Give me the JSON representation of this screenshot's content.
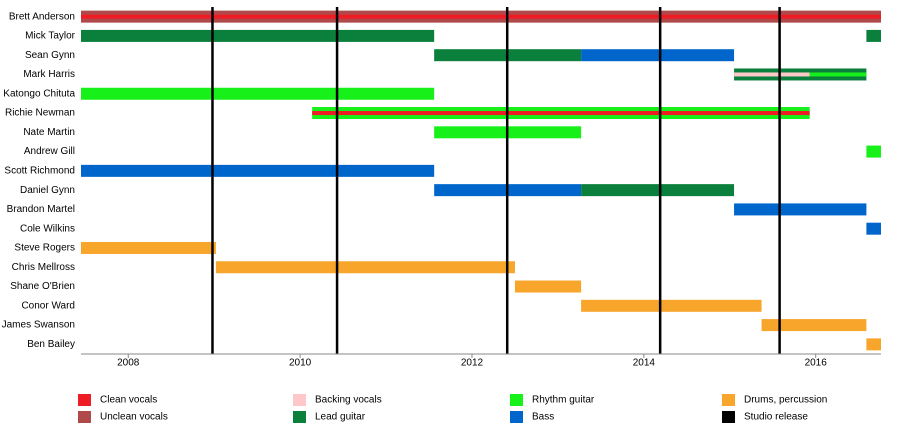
{
  "chart_data": {
    "type": "timeline",
    "xlim": [
      2007.45,
      2016.76
    ],
    "xticks": [
      2008,
      2010,
      2012,
      2014,
      2016
    ],
    "roles": [
      {
        "name": "Clean vocals",
        "color": "#ee1c24"
      },
      {
        "name": "Unclean vocals",
        "color": "#b04a4a"
      },
      {
        "name": "Backing vocals",
        "color": "#ffc8c8"
      },
      {
        "name": "Lead guitar",
        "color": "#0b7f3c"
      },
      {
        "name": "Rhythm guitar",
        "color": "#18f01a"
      },
      {
        "name": "Bass",
        "color": "#0066cc"
      },
      {
        "name": "Drums, percussion",
        "color": "#f8a52c"
      },
      {
        "name": "Studio release",
        "color": "#000000"
      }
    ],
    "studio_releases": [
      2008.98,
      2010.43,
      2012.41,
      2014.19,
      2015.58
    ],
    "members": [
      {
        "name": "Brett Anderson",
        "bars": [
          {
            "start": 2007.45,
            "end": 2016.76,
            "role": "Unclean vocals"
          },
          {
            "start": 2007.45,
            "end": 2016.76,
            "role": "Clean vocals",
            "inner": true
          }
        ]
      },
      {
        "name": "Mick Taylor",
        "bars": [
          {
            "start": 2007.45,
            "end": 2011.56,
            "role": "Lead guitar"
          },
          {
            "start": 2016.59,
            "end": 2016.76,
            "role": "Lead guitar"
          }
        ]
      },
      {
        "name": "Sean Gynn",
        "bars": [
          {
            "start": 2011.56,
            "end": 2013.27,
            "role": "Lead guitar"
          },
          {
            "start": 2013.27,
            "end": 2015.05,
            "role": "Bass"
          }
        ]
      },
      {
        "name": "Mark Harris",
        "bars": [
          {
            "start": 2015.05,
            "end": 2016.59,
            "role": "Lead guitar"
          },
          {
            "start": 2015.05,
            "end": 2015.93,
            "role": "Backing vocals",
            "inner": true
          },
          {
            "start": 2015.93,
            "end": 2016.59,
            "role": "Rhythm guitar",
            "inner": true
          }
        ]
      },
      {
        "name": "Katongo Chituta",
        "bars": [
          {
            "start": 2007.45,
            "end": 2011.56,
            "role": "Rhythm guitar"
          }
        ]
      },
      {
        "name": "Richie Newman",
        "bars": [
          {
            "start": 2010.14,
            "end": 2015.93,
            "role": "Rhythm guitar"
          },
          {
            "start": 2010.14,
            "end": 2015.93,
            "role": "Clean vocals",
            "inner": true
          }
        ]
      },
      {
        "name": "Nate Martin",
        "bars": [
          {
            "start": 2011.56,
            "end": 2013.27,
            "role": "Rhythm guitar"
          }
        ]
      },
      {
        "name": "Andrew Gill",
        "bars": [
          {
            "start": 2016.59,
            "end": 2016.76,
            "role": "Rhythm guitar"
          }
        ]
      },
      {
        "name": "Scott Richmond",
        "bars": [
          {
            "start": 2007.45,
            "end": 2011.56,
            "role": "Bass"
          }
        ]
      },
      {
        "name": "Daniel Gynn",
        "bars": [
          {
            "start": 2011.56,
            "end": 2013.27,
            "role": "Bass"
          },
          {
            "start": 2013.27,
            "end": 2015.05,
            "role": "Lead guitar"
          }
        ]
      },
      {
        "name": "Brandon Martel",
        "bars": [
          {
            "start": 2015.05,
            "end": 2016.59,
            "role": "Bass"
          }
        ]
      },
      {
        "name": "Cole Wilkins",
        "bars": [
          {
            "start": 2016.59,
            "end": 2016.76,
            "role": "Bass"
          }
        ]
      },
      {
        "name": "Steve Rogers",
        "bars": [
          {
            "start": 2007.45,
            "end": 2009.02,
            "role": "Drums, percussion"
          }
        ]
      },
      {
        "name": "Chris Mellross",
        "bars": [
          {
            "start": 2009.02,
            "end": 2012.5,
            "role": "Drums, percussion"
          }
        ]
      },
      {
        "name": "Shane O'Brien",
        "bars": [
          {
            "start": 2012.5,
            "end": 2013.27,
            "role": "Drums, percussion"
          }
        ]
      },
      {
        "name": "Conor Ward",
        "bars": [
          {
            "start": 2013.27,
            "end": 2015.37,
            "role": "Drums, percussion"
          }
        ]
      },
      {
        "name": "James Swanson",
        "bars": [
          {
            "start": 2015.37,
            "end": 2016.59,
            "role": "Drums, percussion"
          }
        ]
      },
      {
        "name": "Ben Bailey",
        "bars": [
          {
            "start": 2016.59,
            "end": 2016.76,
            "role": "Drums, percussion"
          }
        ]
      }
    ]
  }
}
